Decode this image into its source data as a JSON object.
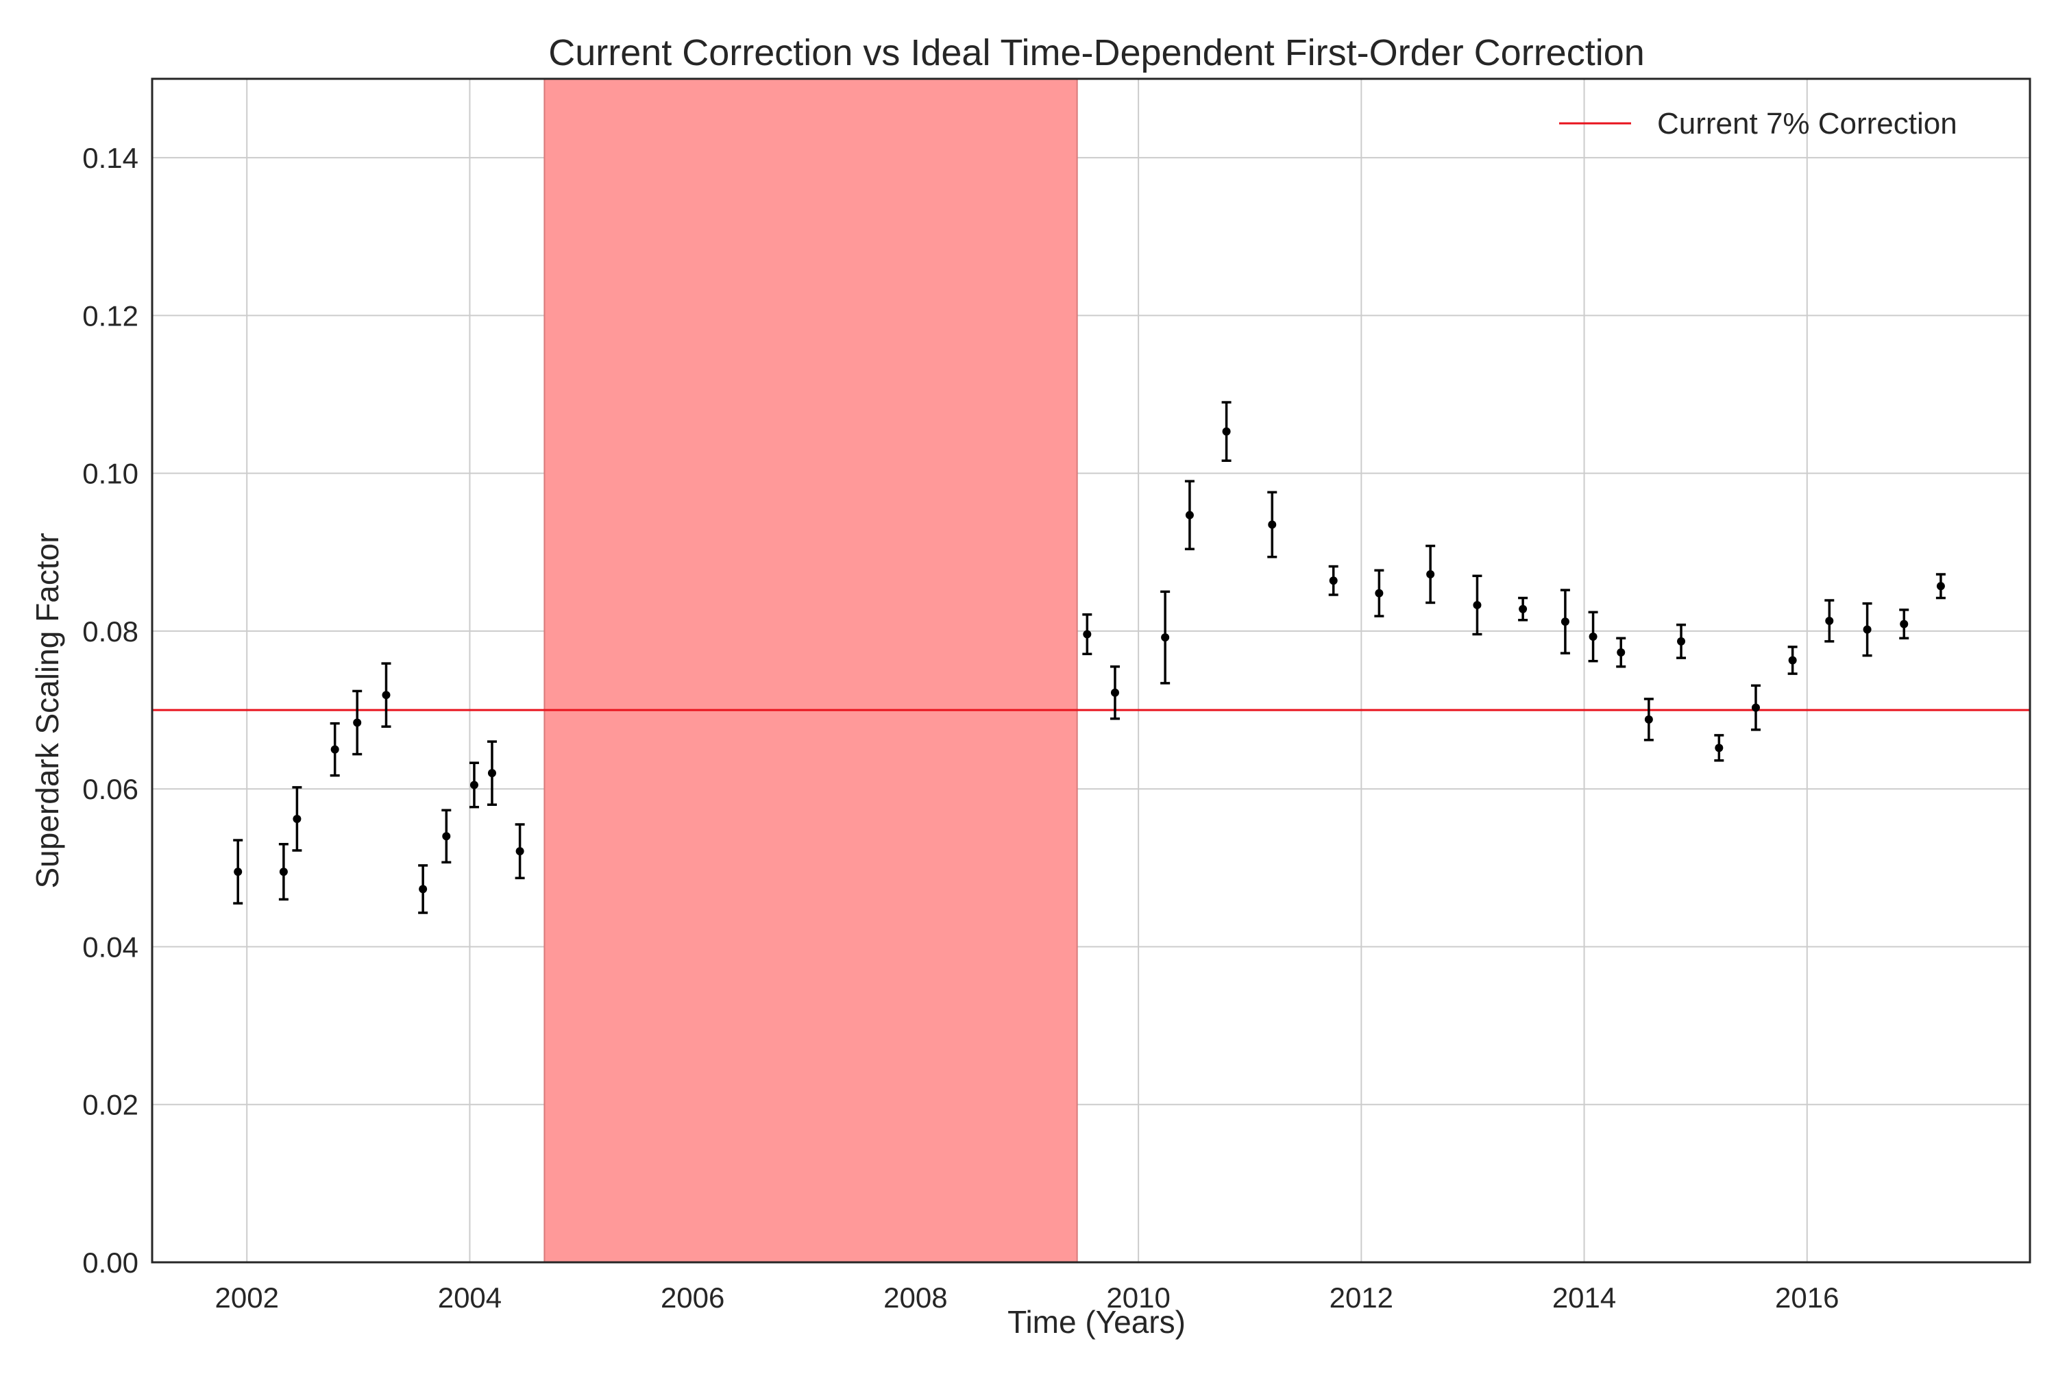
{
  "chart_data": {
    "type": "scatter",
    "title": "Current Correction vs Ideal Time-Dependent First-Order Correction",
    "xlabel": "Time (Years)",
    "ylabel": "Superdark Scaling Factor",
    "xlim": [
      2001.15,
      2018.0
    ],
    "ylim": [
      0.0,
      0.15
    ],
    "x_ticks": [
      2002,
      2004,
      2006,
      2008,
      2010,
      2012,
      2014,
      2016
    ],
    "y_ticks": [
      0.0,
      0.02,
      0.04,
      0.06,
      0.08,
      0.1,
      0.12,
      0.14
    ],
    "x_tick_labels": [
      "2002",
      "2004",
      "2006",
      "2008",
      "2010",
      "2012",
      "2014",
      "2016"
    ],
    "y_tick_labels": [
      "0.00",
      "0.02",
      "0.04",
      "0.06",
      "0.08",
      "0.10",
      "0.12",
      "0.14"
    ],
    "grid": true,
    "legend_position": "top-right",
    "shaded_region": {
      "x_start": 2004.67,
      "x_end": 2009.45,
      "color": "#ff9999"
    },
    "reference_line": {
      "y": 0.07,
      "label": "Current 7% Correction",
      "color": "#e8141e"
    },
    "series": [
      {
        "marker_color": "#000000",
        "points": [
          {
            "x": 2001.92,
            "y": 0.0495,
            "err": 0.004
          },
          {
            "x": 2002.33,
            "y": 0.0495,
            "err": 0.0035
          },
          {
            "x": 2002.45,
            "y": 0.0562,
            "err": 0.004
          },
          {
            "x": 2002.79,
            "y": 0.065,
            "err": 0.0033
          },
          {
            "x": 2002.99,
            "y": 0.0684,
            "err": 0.004
          },
          {
            "x": 2003.25,
            "y": 0.0719,
            "err": 0.004
          },
          {
            "x": 2003.58,
            "y": 0.0473,
            "err": 0.003
          },
          {
            "x": 2003.79,
            "y": 0.054,
            "err": 0.0033
          },
          {
            "x": 2004.04,
            "y": 0.0605,
            "err": 0.0028
          },
          {
            "x": 2004.2,
            "y": 0.062,
            "err": 0.004
          },
          {
            "x": 2004.45,
            "y": 0.0521,
            "err": 0.0034
          },
          {
            "x": 2009.54,
            "y": 0.0796,
            "err": 0.0025
          },
          {
            "x": 2009.79,
            "y": 0.0722,
            "err": 0.0033
          },
          {
            "x": 2010.24,
            "y": 0.0792,
            "err": 0.0058
          },
          {
            "x": 2010.46,
            "y": 0.0947,
            "err": 0.0043
          },
          {
            "x": 2010.79,
            "y": 0.1053,
            "err": 0.0037
          },
          {
            "x": 2011.2,
            "y": 0.0935,
            "err": 0.0041
          },
          {
            "x": 2011.75,
            "y": 0.0864,
            "err": 0.0018
          },
          {
            "x": 2012.16,
            "y": 0.0848,
            "err": 0.0029
          },
          {
            "x": 2012.62,
            "y": 0.0872,
            "err": 0.0036
          },
          {
            "x": 2013.04,
            "y": 0.0833,
            "err": 0.0037
          },
          {
            "x": 2013.45,
            "y": 0.0828,
            "err": 0.0014
          },
          {
            "x": 2013.83,
            "y": 0.0812,
            "err": 0.004
          },
          {
            "x": 2014.08,
            "y": 0.0793,
            "err": 0.0031
          },
          {
            "x": 2014.33,
            "y": 0.0773,
            "err": 0.0018
          },
          {
            "x": 2014.58,
            "y": 0.0688,
            "err": 0.0026
          },
          {
            "x": 2014.87,
            "y": 0.0787,
            "err": 0.0021
          },
          {
            "x": 2015.21,
            "y": 0.0652,
            "err": 0.0016
          },
          {
            "x": 2015.54,
            "y": 0.0703,
            "err": 0.0028
          },
          {
            "x": 2015.87,
            "y": 0.0763,
            "err": 0.0017
          },
          {
            "x": 2016.2,
            "y": 0.0813,
            "err": 0.0026
          },
          {
            "x": 2016.54,
            "y": 0.0802,
            "err": 0.0033
          },
          {
            "x": 2016.87,
            "y": 0.0809,
            "err": 0.0018
          },
          {
            "x": 2017.2,
            "y": 0.0857,
            "err": 0.0015
          }
        ]
      }
    ]
  }
}
